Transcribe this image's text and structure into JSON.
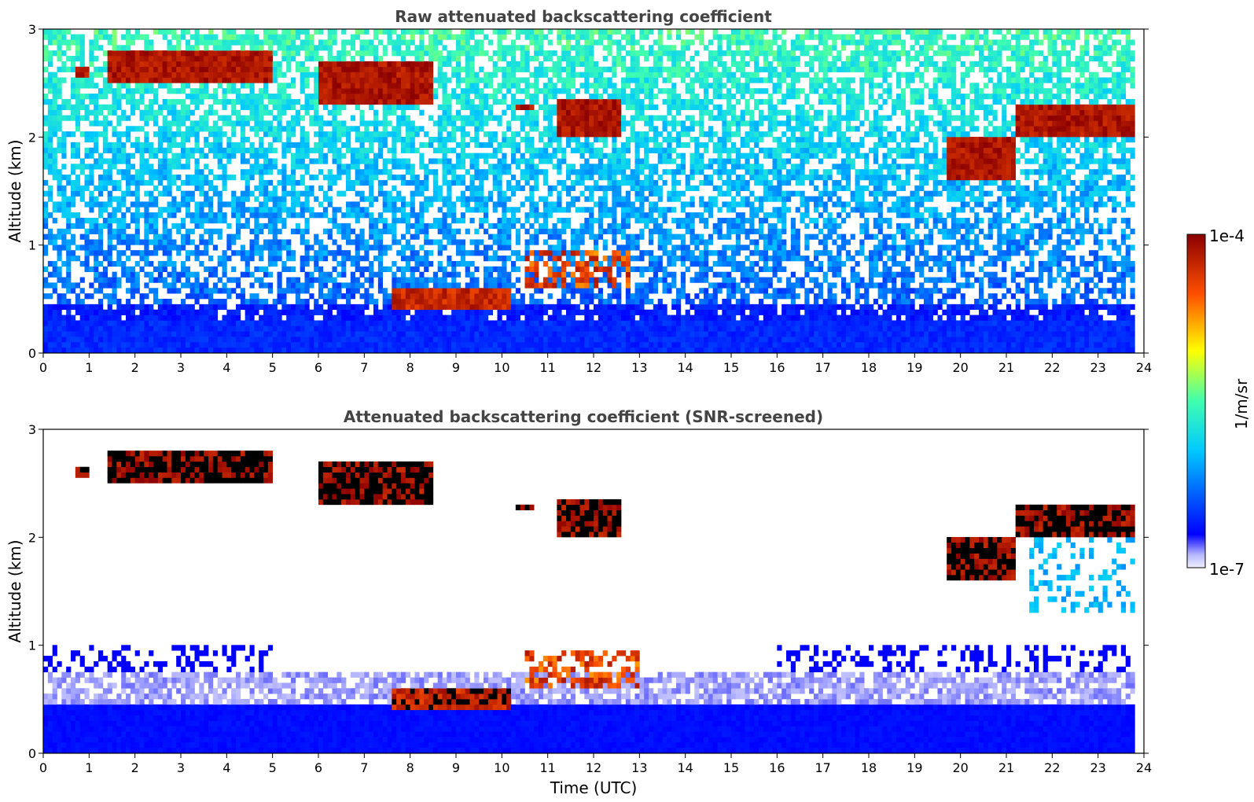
{
  "chart_data": [
    {
      "type": "heatmap",
      "title": "Raw attenuated backscattering coefficient",
      "xlabel": "",
      "ylabel": "Altitude (km)",
      "xlim": [
        0,
        24
      ],
      "ylim": [
        0,
        3
      ],
      "xticks": [
        "0",
        "1",
        "2",
        "3",
        "4",
        "5",
        "6",
        "7",
        "8",
        "9",
        "10",
        "11",
        "12",
        "13",
        "14",
        "15",
        "16",
        "17",
        "18",
        "19",
        "20",
        "21",
        "22",
        "23",
        "24"
      ],
      "yticks": [
        "0",
        "1",
        "2",
        "3"
      ],
      "colorbar": {
        "label": "1/m/sr",
        "max_label": "1e-4",
        "min_label": "1e-7",
        "scale": "log",
        "colormap": "jet"
      },
      "features": [
        {
          "name": "cloud",
          "x": [
            0.7,
            1.0
          ],
          "y": [
            2.55,
            2.65
          ]
        },
        {
          "name": "cloud",
          "x": [
            1.4,
            5.0
          ],
          "y": [
            2.5,
            2.8
          ]
        },
        {
          "name": "cloud",
          "x": [
            6.0,
            8.5
          ],
          "y": [
            2.3,
            2.7
          ]
        },
        {
          "name": "cloud",
          "x": [
            10.3,
            10.7
          ],
          "y": [
            2.25,
            2.32
          ]
        },
        {
          "name": "cloud",
          "x": [
            11.2,
            12.6
          ],
          "y": [
            2.0,
            2.35
          ]
        },
        {
          "name": "cloud",
          "x": [
            19.7,
            21.2
          ],
          "y": [
            1.6,
            2.0
          ]
        },
        {
          "name": "cloud",
          "x": [
            21.2,
            23.8
          ],
          "y": [
            2.0,
            2.3
          ]
        },
        {
          "name": "aerosol-top",
          "x": [
            7.6,
            10.2
          ],
          "y": [
            0.4,
            0.6
          ]
        },
        {
          "name": "aerosol-layer",
          "x": [
            10.5,
            12.8
          ],
          "y": [
            0.6,
            0.95
          ]
        },
        {
          "name": "boundary-layer",
          "x": [
            0,
            23.8
          ],
          "y": [
            0,
            0.45
          ]
        }
      ]
    },
    {
      "type": "heatmap",
      "title": "Attenuated backscattering coefficient (SNR-screened)",
      "xlabel": "Time (UTC)",
      "ylabel": "Altitude (km)",
      "xlim": [
        0,
        24
      ],
      "ylim": [
        0,
        3
      ],
      "xticks": [
        "0",
        "1",
        "2",
        "3",
        "4",
        "5",
        "6",
        "7",
        "8",
        "9",
        "10",
        "11",
        "12",
        "13",
        "14",
        "15",
        "16",
        "17",
        "18",
        "19",
        "20",
        "21",
        "22",
        "23",
        "24"
      ],
      "yticks": [
        "0",
        "1",
        "2",
        "3"
      ],
      "colorbar": {
        "label": "1/m/sr",
        "max_label": "1e-4",
        "min_label": "1e-7",
        "scale": "log",
        "colormap": "jet"
      },
      "features": [
        {
          "name": "cloud",
          "x": [
            0.7,
            1.0
          ],
          "y": [
            2.55,
            2.65
          ]
        },
        {
          "name": "cloud",
          "x": [
            1.4,
            5.0
          ],
          "y": [
            2.5,
            2.8
          ]
        },
        {
          "name": "cloud",
          "x": [
            6.0,
            8.5
          ],
          "y": [
            2.3,
            2.7
          ]
        },
        {
          "name": "cloud",
          "x": [
            10.3,
            10.7
          ],
          "y": [
            2.25,
            2.32
          ]
        },
        {
          "name": "cloud",
          "x": [
            11.2,
            12.6
          ],
          "y": [
            2.0,
            2.35
          ]
        },
        {
          "name": "cloud",
          "x": [
            19.7,
            21.2
          ],
          "y": [
            1.6,
            2.0
          ]
        },
        {
          "name": "cloud",
          "x": [
            21.2,
            23.8
          ],
          "y": [
            2.0,
            2.3
          ]
        },
        {
          "name": "aerosol-top",
          "x": [
            7.6,
            10.2
          ],
          "y": [
            0.4,
            0.6
          ]
        },
        {
          "name": "aerosol-layer",
          "x": [
            10.5,
            13.0
          ],
          "y": [
            0.6,
            0.95
          ]
        },
        {
          "name": "boundary-layer",
          "x": [
            0,
            23.8
          ],
          "y": [
            0,
            1.0
          ]
        },
        {
          "name": "virga",
          "x": [
            21.5,
            23.8
          ],
          "y": [
            1.3,
            2.0
          ]
        }
      ]
    }
  ]
}
